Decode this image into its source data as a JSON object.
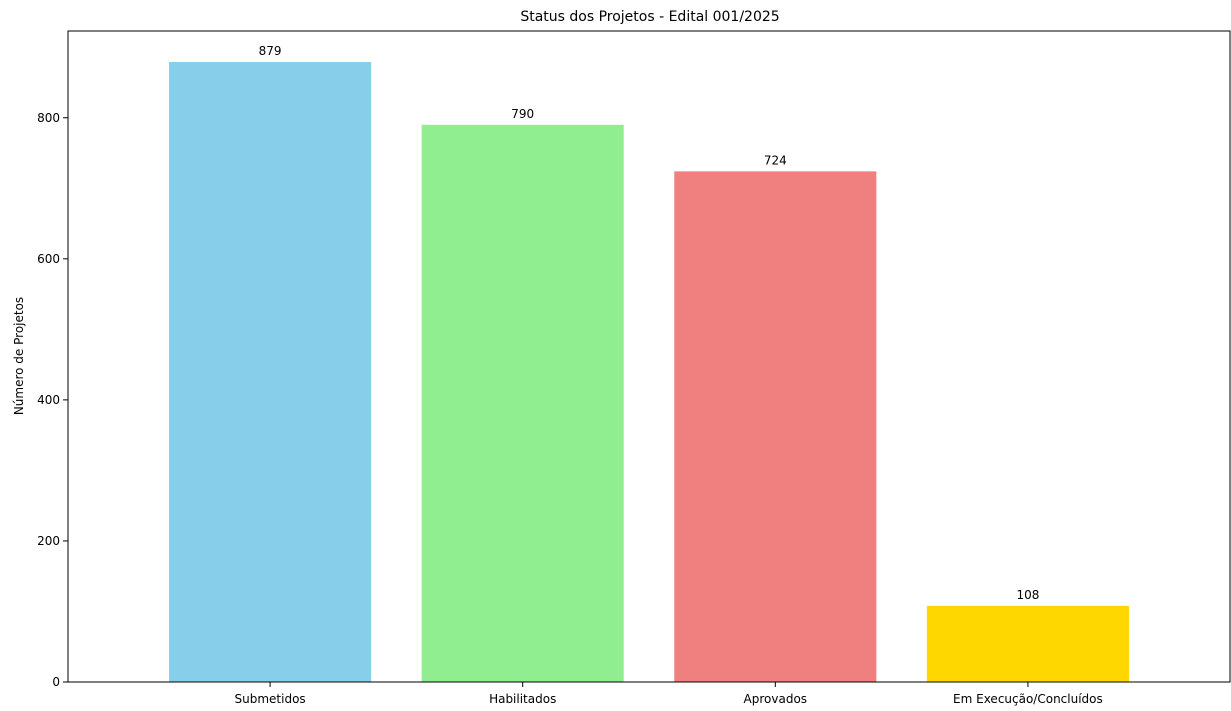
{
  "chart_data": {
    "type": "bar",
    "title": "Status dos Projetos - Edital 001/2025",
    "xlabel": "",
    "ylabel": "Número de Projetos",
    "categories": [
      "Submetidos",
      "Habilitados",
      "Aprovados",
      "Em Execução/Concluídos"
    ],
    "values": [
      879,
      790,
      724,
      108
    ],
    "colors": [
      "#87ceeb",
      "#90ee90",
      "#f08080",
      "#ffd700"
    ],
    "ylim": [
      0,
      923
    ],
    "yticks": [
      0,
      200,
      400,
      600,
      800
    ],
    "grid": false,
    "legend": "none"
  }
}
